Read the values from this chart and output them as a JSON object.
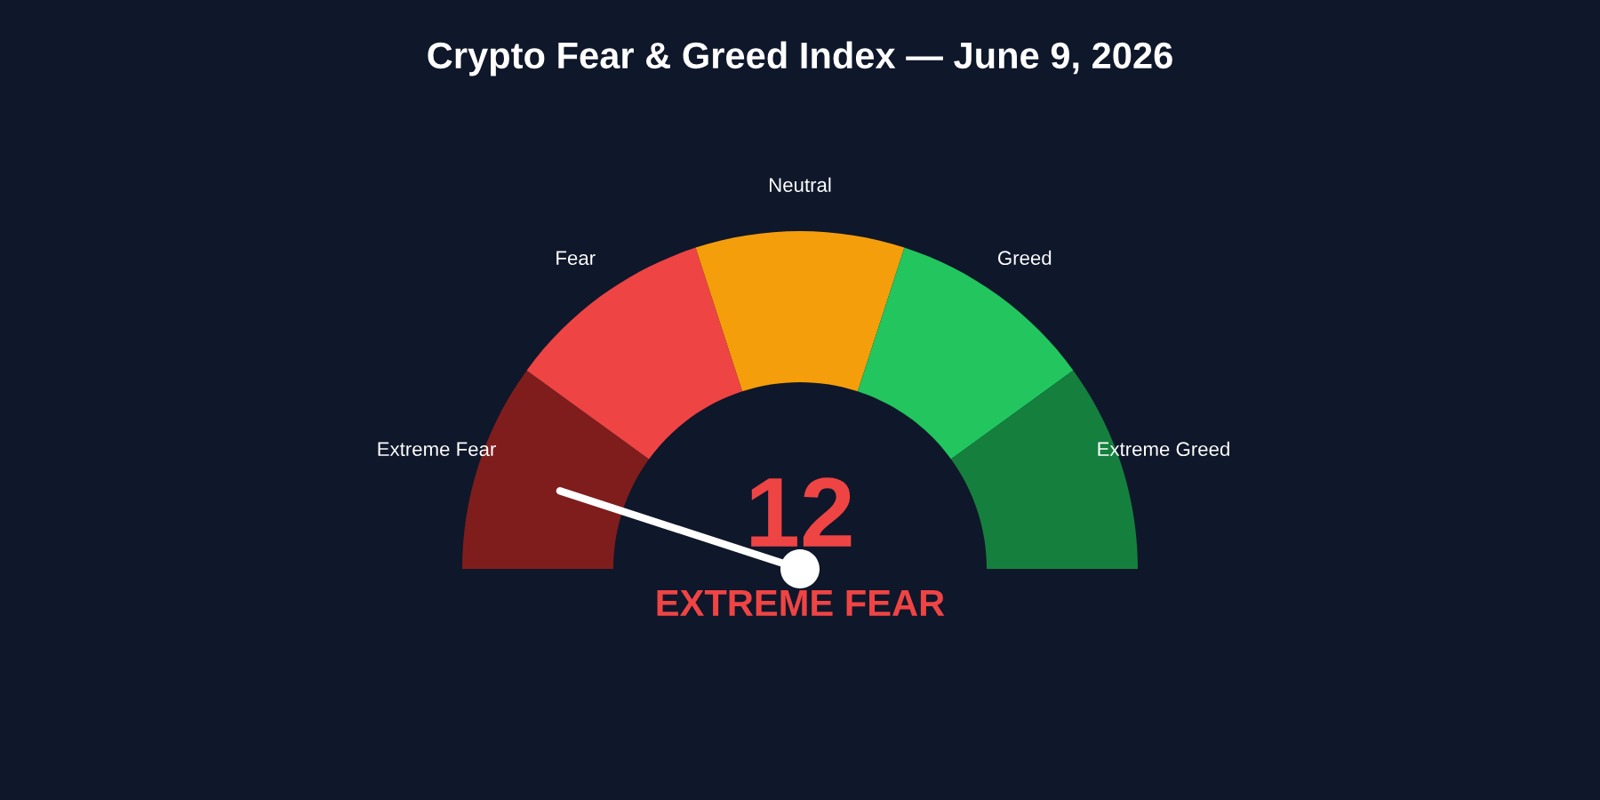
{
  "chart_data": {
    "type": "donut",
    "title": "Crypto Fear & Greed Index — June 9, 2026",
    "categories": [
      "Extreme Fear",
      "Fear",
      "Neutral",
      "Greed",
      "Extreme Greed"
    ],
    "values": [
      20,
      20,
      20,
      20,
      20
    ],
    "colors": [
      "#7f1d1d",
      "#ef4444",
      "#f59e0b",
      "#22c55e",
      "#15803d"
    ],
    "needle": "Extreme Fear",
    "annotations": [
      "12",
      "EXTREME FEAR"
    ]
  }
}
